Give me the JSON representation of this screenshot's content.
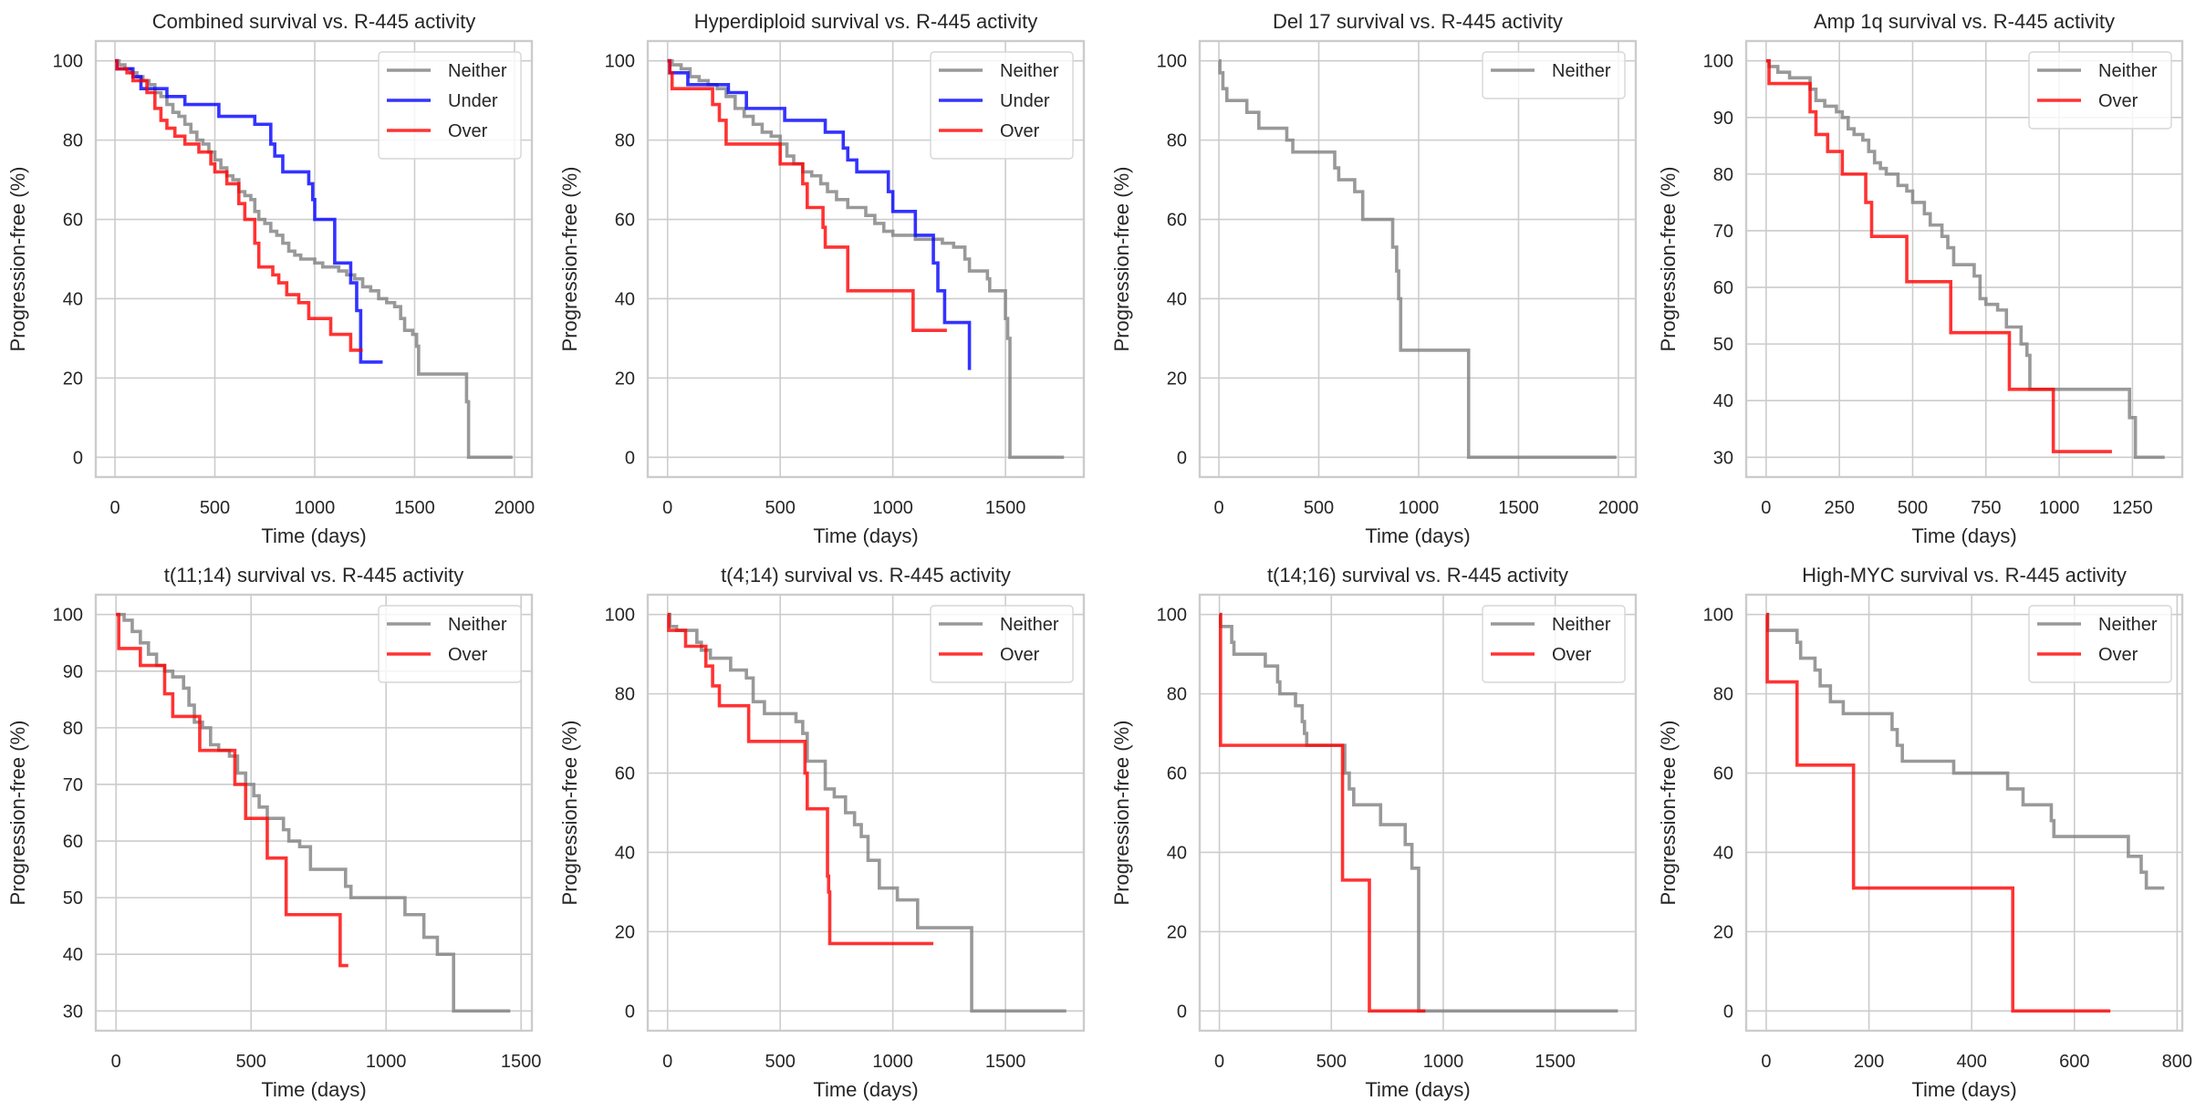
{
  "figure": {
    "ylabel": "Progression-free (%)",
    "xlabel": "Time (days)",
    "colors": {
      "Neither": "#808080",
      "Under": "#0000ff",
      "Over": "#ff0000"
    }
  },
  "chart_data": [
    {
      "type": "line",
      "step": true,
      "title": "Combined survival vs. R-445 activity",
      "xlabel": "Time (days)",
      "ylabel": "Progression-free (%)",
      "xlim": [
        -96,
        2087
      ],
      "ylim": [
        -5,
        105
      ],
      "xticks": [
        0,
        500,
        1000,
        1500,
        2000
      ],
      "yticks": [
        0,
        20,
        40,
        60,
        80,
        100
      ],
      "grid": true,
      "legend": "top-right",
      "series": [
        {
          "name": "Neither",
          "x": [
            0,
            20,
            50,
            80,
            110,
            140,
            170,
            200,
            230,
            260,
            290,
            320,
            350,
            380,
            410,
            440,
            470,
            500,
            530,
            560,
            590,
            620,
            650,
            680,
            700,
            720,
            750,
            780,
            810,
            840,
            870,
            900,
            930,
            960,
            1000,
            1040,
            1080,
            1120,
            1160,
            1200,
            1240,
            1280,
            1320,
            1360,
            1400,
            1430,
            1450,
            1490,
            1510,
            1520,
            1760,
            1770,
            1990
          ],
          "y": [
            100,
            99,
            98,
            97,
            96,
            95,
            94,
            92,
            91,
            89,
            87,
            86,
            84,
            82,
            80,
            79,
            77,
            75,
            73,
            71,
            70,
            67,
            66,
            65,
            62,
            60,
            59,
            57,
            56,
            54,
            52,
            51,
            50,
            50,
            49,
            48,
            48,
            47,
            46,
            45,
            43,
            42,
            40,
            39,
            38,
            35,
            32,
            31,
            28,
            21,
            14,
            0,
            0
          ]
        },
        {
          "name": "Under",
          "x": [
            0,
            10,
            90,
            130,
            260,
            350,
            520,
            700,
            780,
            800,
            840,
            970,
            990,
            1000,
            1060,
            1100,
            1180,
            1210,
            1230,
            1340
          ],
          "y": [
            100,
            98,
            96,
            93,
            91,
            89,
            86,
            84,
            79,
            76,
            72,
            69,
            65,
            60,
            60,
            49,
            44,
            37,
            24,
            24
          ]
        },
        {
          "name": "Over",
          "x": [
            0,
            10,
            60,
            90,
            130,
            160,
            200,
            230,
            260,
            300,
            350,
            420,
            480,
            500,
            560,
            620,
            650,
            700,
            720,
            790,
            820,
            860,
            920,
            970,
            1080,
            1180,
            1240
          ],
          "y": [
            100,
            98,
            97,
            95,
            95,
            92,
            88,
            85,
            83,
            81,
            79,
            77,
            74,
            72,
            69,
            64,
            60,
            54,
            48,
            46,
            44,
            41,
            39,
            35,
            31,
            27,
            27
          ]
        }
      ]
    },
    {
      "type": "line",
      "step": true,
      "title": "Hyperdiploid survival vs. R-445 activity",
      "xlabel": "Time (days)",
      "ylabel": "Progression-free (%)",
      "xlim": [
        -88,
        1848
      ],
      "ylim": [
        -5,
        105
      ],
      "xticks": [
        0,
        500,
        1000,
        1500
      ],
      "yticks": [
        0,
        20,
        40,
        60,
        80,
        100
      ],
      "grid": true,
      "legend": "top-right",
      "series": [
        {
          "name": "Neither",
          "x": [
            0,
            20,
            60,
            100,
            140,
            180,
            220,
            260,
            300,
            340,
            380,
            420,
            460,
            500,
            530,
            560,
            600,
            640,
            680,
            710,
            750,
            800,
            860,
            880,
            920,
            960,
            1000,
            1100,
            1160,
            1220,
            1270,
            1320,
            1340,
            1400,
            1420,
            1430,
            1500,
            1510,
            1520,
            1760
          ],
          "y": [
            100,
            99,
            98,
            96,
            95,
            94,
            93,
            91,
            88,
            86,
            84,
            82,
            81,
            79,
            76,
            74,
            72,
            71,
            69,
            67,
            65,
            63,
            63,
            61,
            59,
            57,
            56,
            55,
            55,
            54,
            53,
            50,
            47,
            47,
            45,
            42,
            35,
            30,
            0,
            0
          ]
        },
        {
          "name": "Under",
          "x": [
            0,
            10,
            90,
            270,
            350,
            520,
            700,
            780,
            800,
            840,
            980,
            1000,
            1100,
            1180,
            1200,
            1230,
            1340
          ],
          "y": [
            100,
            97,
            94,
            92,
            88,
            85,
            82,
            78,
            75,
            72,
            67,
            62,
            56,
            49,
            42,
            34,
            22
          ]
        },
        {
          "name": "Over",
          "x": [
            0,
            10,
            20,
            200,
            230,
            260,
            500,
            600,
            620,
            690,
            700,
            800,
            1090,
            1240
          ],
          "y": [
            100,
            97,
            93,
            89,
            85,
            79,
            74,
            69,
            63,
            58,
            53,
            42,
            32,
            32
          ]
        }
      ]
    },
    {
      "type": "line",
      "step": true,
      "title": "Del 17 survival vs. R-445 activity",
      "xlabel": "Time (days)",
      "ylabel": "Progression-free (%)",
      "xlim": [
        -96,
        2087
      ],
      "ylim": [
        -5,
        105
      ],
      "xticks": [
        0,
        500,
        1000,
        1500,
        2000
      ],
      "yticks": [
        0,
        20,
        40,
        60,
        80,
        100
      ],
      "grid": true,
      "legend": "top-right",
      "series": [
        {
          "name": "Neither",
          "x": [
            0,
            5,
            20,
            40,
            140,
            200,
            340,
            370,
            580,
            600,
            680,
            720,
            870,
            890,
            900,
            910,
            1250,
            1990
          ],
          "y": [
            100,
            97,
            93,
            90,
            87,
            83,
            80,
            77,
            73,
            70,
            67,
            60,
            53,
            47,
            40,
            27,
            0,
            0
          ]
        }
      ]
    },
    {
      "type": "line",
      "step": true,
      "title": "Amp 1q survival vs. R-445 activity",
      "xlabel": "Time (days)",
      "ylabel": "Progression-free (%)",
      "xlim": [
        -68,
        1420
      ],
      "ylim": [
        26.5,
        103.5
      ],
      "xticks": [
        0,
        250,
        500,
        750,
        1000,
        1250
      ],
      "yticks": [
        30,
        40,
        50,
        60,
        70,
        80,
        90,
        100
      ],
      "grid": true,
      "legend": "top-right",
      "series": [
        {
          "name": "Neither",
          "x": [
            0,
            10,
            40,
            80,
            150,
            170,
            200,
            240,
            260,
            280,
            300,
            330,
            350,
            370,
            390,
            410,
            450,
            480,
            500,
            540,
            560,
            600,
            620,
            640,
            710,
            730,
            750,
            790,
            820,
            870,
            890,
            900,
            1240,
            1260,
            1360
          ],
          "y": [
            100,
            99,
            98,
            97,
            95,
            93,
            92,
            91,
            90,
            88,
            87,
            86,
            84,
            82,
            81,
            80,
            78,
            77,
            75,
            73,
            71,
            69,
            67,
            64,
            62,
            58,
            57,
            56,
            53,
            50,
            48,
            42,
            37,
            30,
            30
          ]
        },
        {
          "name": "Over",
          "x": [
            0,
            10,
            150,
            170,
            210,
            260,
            340,
            360,
            480,
            630,
            830,
            980,
            1180
          ],
          "y": [
            100,
            96,
            91,
            87,
            84,
            80,
            75,
            69,
            61,
            52,
            42,
            31,
            31
          ]
        }
      ]
    },
    {
      "type": "line",
      "step": true,
      "title": "t(11;14) survival vs. R-445 activity",
      "xlabel": "Time (days)",
      "ylabel": "Progression-free (%)",
      "xlim": [
        -75,
        1540
      ],
      "ylim": [
        26.5,
        103.5
      ],
      "xticks": [
        0,
        500,
        1000,
        1500
      ],
      "yticks": [
        30,
        40,
        50,
        60,
        70,
        80,
        90,
        100
      ],
      "grid": true,
      "legend": "top-right",
      "series": [
        {
          "name": "Neither",
          "x": [
            0,
            30,
            60,
            90,
            120,
            150,
            180,
            210,
            250,
            270,
            290,
            320,
            350,
            380,
            420,
            450,
            480,
            510,
            530,
            560,
            620,
            640,
            680,
            720,
            850,
            870,
            1070,
            1140,
            1190,
            1250,
            1460
          ],
          "y": [
            100,
            99,
            97,
            95,
            93,
            91,
            90,
            89,
            87,
            84,
            81,
            80,
            77,
            76,
            75,
            72,
            70,
            68,
            66,
            64,
            62,
            60,
            59,
            55,
            52,
            50,
            47,
            43,
            40,
            30,
            30
          ]
        },
        {
          "name": "Over",
          "x": [
            0,
            10,
            90,
            180,
            210,
            310,
            440,
            480,
            560,
            630,
            830,
            860
          ],
          "y": [
            100,
            94,
            91,
            86,
            82,
            76,
            70,
            64,
            57,
            47,
            38,
            38
          ]
        }
      ]
    },
    {
      "type": "line",
      "step": true,
      "title": "t(4;14) survival vs. R-445 activity",
      "xlabel": "Time (days)",
      "ylabel": "Progression-free (%)",
      "xlim": [
        -88,
        1848
      ],
      "ylim": [
        -5,
        105
      ],
      "xticks": [
        0,
        500,
        1000,
        1500
      ],
      "yticks": [
        0,
        20,
        40,
        60,
        80,
        100
      ],
      "grid": true,
      "legend": "top-right",
      "series": [
        {
          "name": "Neither",
          "x": [
            0,
            10,
            40,
            130,
            150,
            190,
            280,
            350,
            380,
            430,
            570,
            600,
            620,
            700,
            740,
            790,
            830,
            860,
            890,
            940,
            1020,
            1110,
            1350,
            1770
          ],
          "y": [
            100,
            97,
            96,
            93,
            91,
            89,
            86,
            84,
            78,
            75,
            73,
            70,
            63,
            56,
            54,
            50,
            47,
            44,
            38,
            31,
            28,
            21,
            0,
            0
          ]
        },
        {
          "name": "Over",
          "x": [
            0,
            5,
            80,
            170,
            200,
            230,
            360,
            610,
            620,
            710,
            715,
            720,
            1180
          ],
          "y": [
            100,
            96,
            92,
            87,
            82,
            77,
            68,
            60,
            51,
            34,
            30,
            17,
            17
          ]
        }
      ]
    },
    {
      "type": "line",
      "step": true,
      "title": "t(14;16) survival vs. R-445 activity",
      "xlabel": "Time (days)",
      "ylabel": "Progression-free (%)",
      "xlim": [
        -88,
        1860
      ],
      "ylim": [
        -5,
        105
      ],
      "xticks": [
        0,
        500,
        1000,
        1500
      ],
      "yticks": [
        0,
        20,
        40,
        60,
        80,
        100
      ],
      "grid": true,
      "legend": "top-right",
      "series": [
        {
          "name": "Neither",
          "x": [
            0,
            5,
            55,
            65,
            205,
            260,
            270,
            340,
            370,
            380,
            390,
            560,
            580,
            600,
            720,
            830,
            860,
            890,
            910,
            1780
          ],
          "y": [
            100,
            97,
            93,
            90,
            87,
            83,
            80,
            77,
            73,
            70,
            67,
            60,
            56,
            52,
            47,
            42,
            36,
            0,
            0,
            0
          ]
        },
        {
          "name": "Over",
          "x": [
            0,
            5,
            550,
            670,
            920
          ],
          "y": [
            100,
            67,
            33,
            0,
            0
          ]
        }
      ]
    },
    {
      "type": "line",
      "step": true,
      "title": "High-MYC survival vs. R-445 activity",
      "xlabel": "Time (days)",
      "ylabel": "Progression-free (%)",
      "xlim": [
        -39,
        810
      ],
      "ylim": [
        -5,
        105
      ],
      "xticks": [
        0,
        200,
        400,
        600,
        800
      ],
      "yticks": [
        0,
        20,
        40,
        60,
        80,
        100
      ],
      "grid": true,
      "legend": "top-right",
      "series": [
        {
          "name": "Neither",
          "x": [
            0,
            3,
            60,
            67,
            95,
            105,
            125,
            150,
            245,
            255,
            265,
            365,
            470,
            500,
            555,
            560,
            705,
            730,
            740,
            775
          ],
          "y": [
            100,
            96,
            93,
            89,
            86,
            82,
            78,
            75,
            71,
            67,
            63,
            60,
            56,
            52,
            48,
            44,
            39,
            35,
            31,
            31
          ]
        },
        {
          "name": "Over",
          "x": [
            0,
            2,
            60,
            170,
            480,
            670
          ],
          "y": [
            100,
            83,
            62,
            31,
            0,
            0
          ]
        }
      ]
    }
  ]
}
